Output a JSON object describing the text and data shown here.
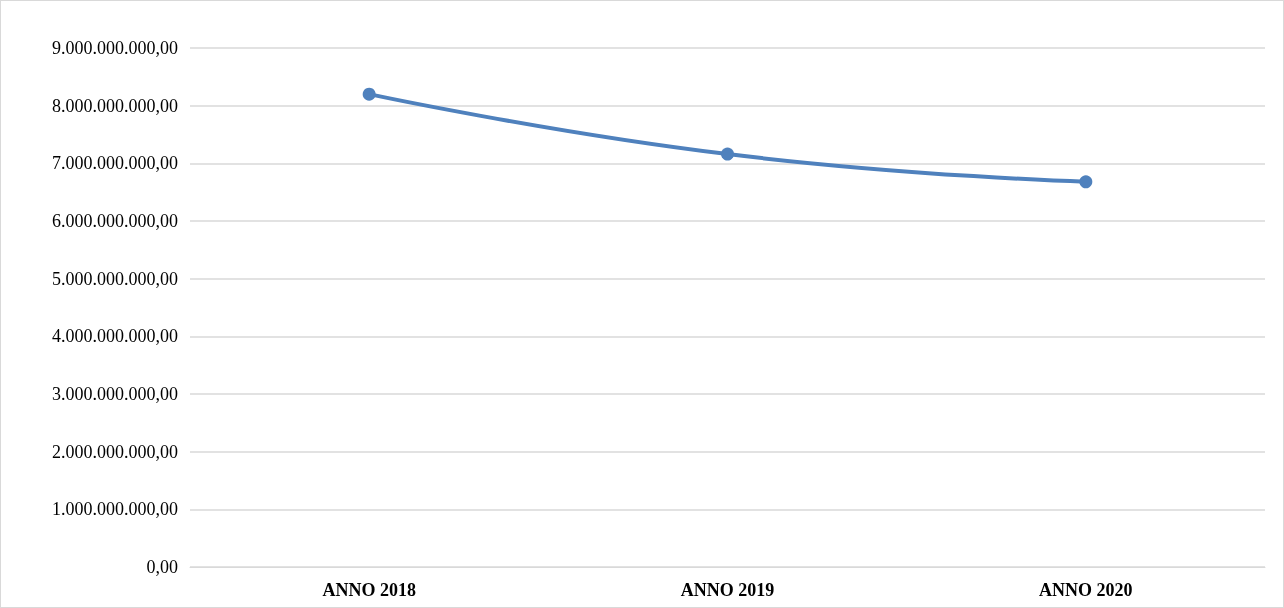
{
  "chart_data": {
    "type": "line",
    "categories": [
      "ANNO 2018",
      "ANNO 2019",
      "ANNO 2020"
    ],
    "series": [
      {
        "color": "#4f81bd",
        "values": [
          8200000000,
          7160000000,
          6680000000
        ]
      }
    ],
    "ylim": [
      0,
      9000000000
    ],
    "yticks": [
      {
        "value": 0,
        "label": "0,00"
      },
      {
        "value": 1000000000,
        "label": "1.000.000.000,00"
      },
      {
        "value": 2000000000,
        "label": "2.000.000.000,00"
      },
      {
        "value": 3000000000,
        "label": "3.000.000.000,00"
      },
      {
        "value": 4000000000,
        "label": "4.000.000.000,00"
      },
      {
        "value": 5000000000,
        "label": "5.000.000.000,00"
      },
      {
        "value": 6000000000,
        "label": "6.000.000.000,00"
      },
      {
        "value": 7000000000,
        "label": "7.000.000.000,00"
      },
      {
        "value": 8000000000,
        "label": "8.000.000.000,00"
      },
      {
        "value": 9000000000,
        "label": "9.000.000.000,00"
      }
    ],
    "grid": "y",
    "marker": "circle",
    "line_style": "solid"
  }
}
